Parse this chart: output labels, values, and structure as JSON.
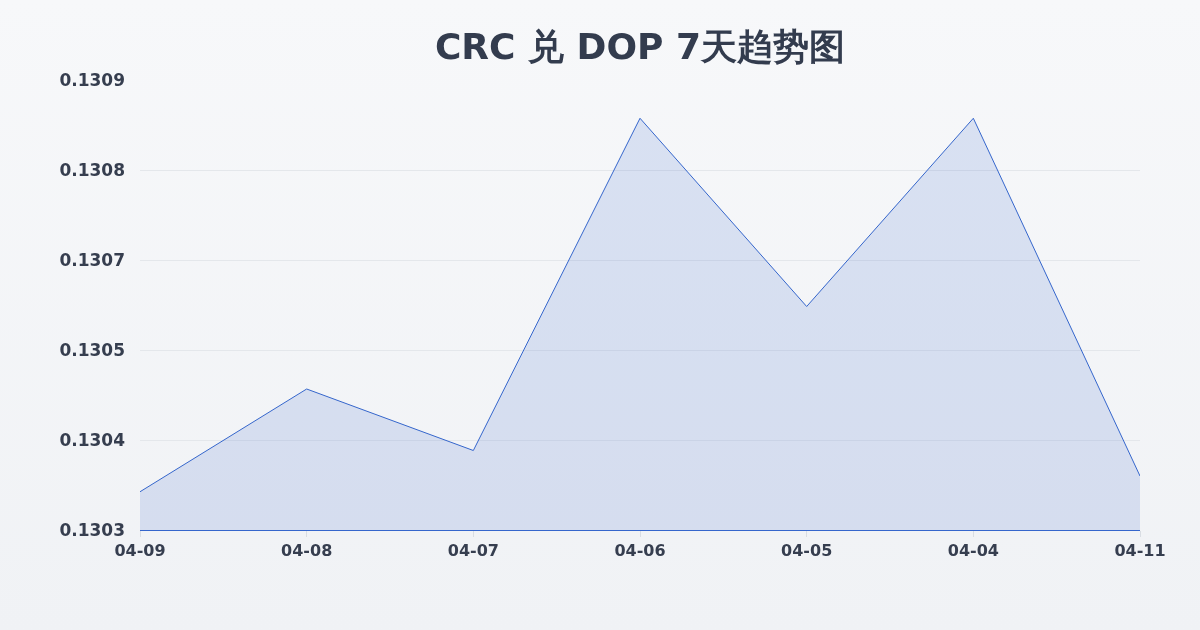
{
  "chart_data": {
    "type": "area",
    "title": "CRC 兑 DOP 7天趋势图",
    "categories": [
      "04-09",
      "04-08",
      "04-07",
      "04-06",
      "04-05",
      "04-04",
      "04-11"
    ],
    "series": [
      {
        "color": "#3566cc",
        "values": [
          0.130351,
          0.130488,
          0.130406,
          0.130849,
          0.130598,
          0.130849,
          0.130372
        ]
      }
    ],
    "ylim": [
      0.1303,
      0.1309
    ],
    "yticks": [
      0.1303,
      {
        "value": 0.13042,
        "label": "0.1304"
      },
      {
        "value": 0.13054,
        "label": "0.1305"
      },
      {
        "value": 0.13066,
        "label": "0.1307"
      },
      {
        "value": 0.13078,
        "label": "0.1308"
      },
      0.1309
    ],
    "grid": "y"
  }
}
